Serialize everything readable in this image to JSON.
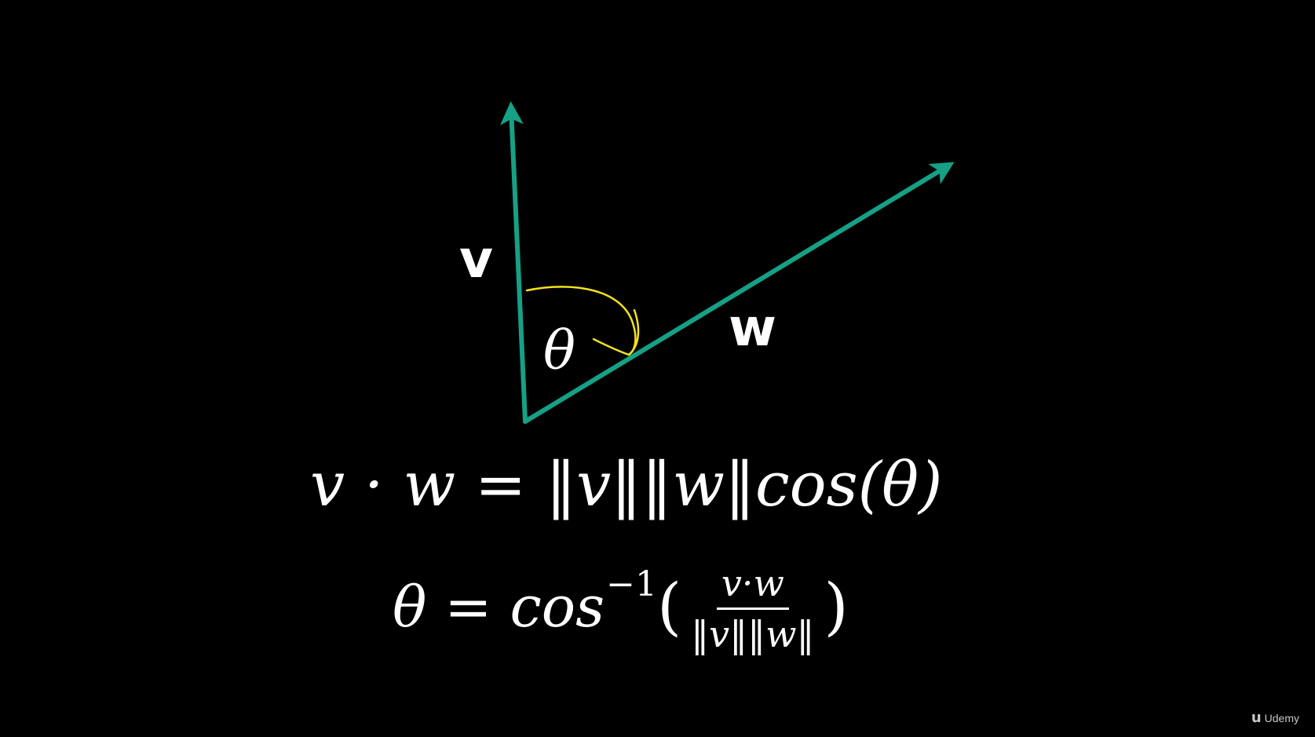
{
  "diagram": {
    "vector_v_label": "v",
    "vector_w_label": "w",
    "angle_label": "θ",
    "vector_color": "#16a085",
    "arc_color": "#f4e21c"
  },
  "formulas": {
    "dot_product": "v · w = ‖v‖‖w‖cos(θ)",
    "angle": {
      "lhs": "θ = cos",
      "superscript": "−1",
      "open_paren": "(",
      "numerator": "v·w",
      "denominator": "‖v‖‖w‖",
      "close_paren": ")"
    }
  },
  "watermark": {
    "icon": "udemy-logo-icon",
    "text": "Udemy"
  }
}
